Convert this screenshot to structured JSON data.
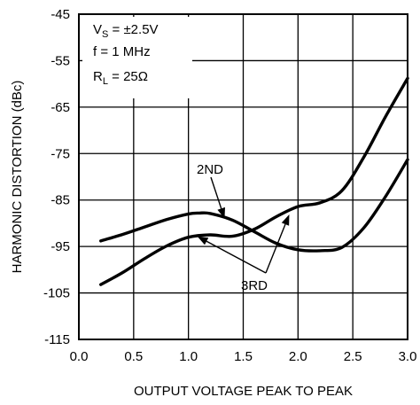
{
  "chart_data": {
    "type": "line",
    "xlabel": "OUTPUT VOLTAGE PEAK TO PEAK",
    "ylabel": "HARMONIC DISTORTION (dBc)",
    "xlim": [
      0,
      3.0
    ],
    "ylim": [
      -115,
      -45
    ],
    "xticks": [
      "0.0",
      "0.5",
      "1.0",
      "1.5",
      "2.0",
      "2.5",
      "3.0"
    ],
    "yticks": [
      "-45",
      "-55",
      "-65",
      "-75",
      "-85",
      "-95",
      "-105",
      "-115"
    ],
    "grid": true,
    "legend_box": {
      "line1_main": "V",
      "line1_sub": "S",
      "line1_rest": " = ±2.5V",
      "line2": "f = 1 MHz",
      "line3_main": "R",
      "line3_sub": "L",
      "line3_rest": " = 25Ω"
    },
    "series": [
      {
        "name": "2ND",
        "x": [
          0.2,
          0.4,
          0.6,
          0.8,
          1.0,
          1.1,
          1.2,
          1.4,
          1.6,
          1.8,
          2.0,
          2.2,
          2.4,
          2.6,
          2.8,
          3.0
        ],
        "y": [
          -93.8,
          -92.4,
          -90.8,
          -89.2,
          -88.0,
          -87.8,
          -87.9,
          -89.3,
          -91.8,
          -94.3,
          -95.7,
          -95.9,
          -95.2,
          -91.0,
          -84.2,
          -76.3
        ]
      },
      {
        "name": "3RD",
        "x": [
          0.2,
          0.4,
          0.6,
          0.8,
          1.0,
          1.2,
          1.4,
          1.6,
          1.8,
          2.0,
          2.2,
          2.4,
          2.6,
          2.8,
          3.0
        ],
        "y": [
          -103.2,
          -100.6,
          -97.6,
          -94.9,
          -93.0,
          -92.5,
          -92.8,
          -91.3,
          -88.6,
          -86.4,
          -85.6,
          -83.0,
          -75.8,
          -67.0,
          -58.8
        ]
      }
    ],
    "annotations": [
      {
        "text": "2ND",
        "series": "2ND",
        "arrow_to": [
          [
            1.33,
            -89.0
          ]
        ]
      },
      {
        "text": "3RD",
        "series": "3RD",
        "arrow_to": [
          [
            1.08,
            -92.8
          ],
          [
            1.92,
            -88.1
          ]
        ]
      }
    ]
  }
}
